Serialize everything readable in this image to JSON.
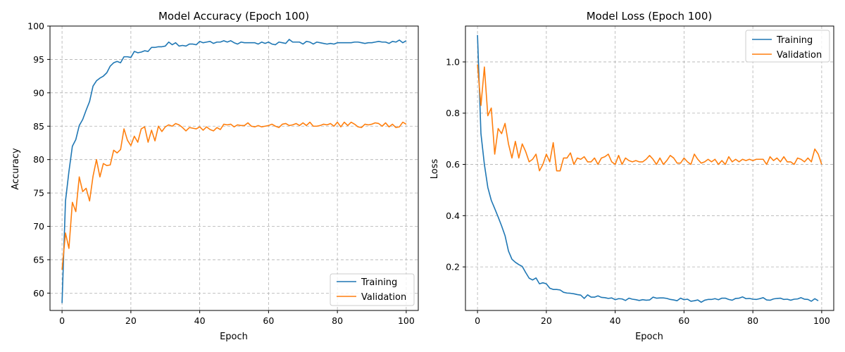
{
  "colors": {
    "training": "#1f77b4",
    "validation": "#ff7f0e",
    "grid": "#b0b0b0",
    "axis": "#000000"
  },
  "chart_data": [
    {
      "type": "line",
      "title": "Model Accuracy (Epoch 100)",
      "xlabel": "Epoch",
      "ylabel": "Accuracy",
      "xlim": [
        -3.5,
        103.5
      ],
      "ylim": [
        57.4,
        100
      ],
      "xticks": [
        0,
        20,
        40,
        60,
        80,
        100
      ],
      "yticks": [
        60,
        65,
        70,
        75,
        80,
        85,
        90,
        95,
        100
      ],
      "grid": true,
      "legend_position": "lower right",
      "series": [
        {
          "name": "Training",
          "color": "#1f77b4",
          "values": [
            58.5,
            73.8,
            78.2,
            82.0,
            83.0,
            85.1,
            86.0,
            87.4,
            88.7,
            91.0,
            91.8,
            92.2,
            92.5,
            93.0,
            94.0,
            94.5,
            94.7,
            94.5,
            95.4,
            95.4,
            95.3,
            96.2,
            96.0,
            96.1,
            96.3,
            96.2,
            96.8,
            96.8,
            96.9,
            96.9,
            97.0,
            97.6,
            97.2,
            97.5,
            97.0,
            97.1,
            97.0,
            97.3,
            97.3,
            97.2,
            97.7,
            97.5,
            97.6,
            97.7,
            97.4,
            97.6,
            97.6,
            97.8,
            97.6,
            97.8,
            97.5,
            97.3,
            97.6,
            97.5,
            97.5,
            97.5,
            97.5,
            97.3,
            97.6,
            97.4,
            97.6,
            97.3,
            97.2,
            97.6,
            97.5,
            97.4,
            98.0,
            97.6,
            97.6,
            97.6,
            97.3,
            97.7,
            97.6,
            97.3,
            97.6,
            97.5,
            97.4,
            97.3,
            97.4,
            97.3,
            97.5,
            97.5,
            97.5,
            97.5,
            97.5,
            97.6,
            97.6,
            97.5,
            97.4,
            97.5,
            97.5,
            97.6,
            97.7,
            97.6,
            97.6,
            97.4,
            97.7,
            97.6,
            97.9,
            97.5,
            97.8
          ]
        },
        {
          "name": "Validation",
          "color": "#ff7f0e",
          "values": [
            63.5,
            69.0,
            66.7,
            73.6,
            72.2,
            77.4,
            75.2,
            75.7,
            73.8,
            77.5,
            80.0,
            77.4,
            79.4,
            79.1,
            79.2,
            81.4,
            81.0,
            81.5,
            84.6,
            82.9,
            82.1,
            83.5,
            82.6,
            84.6,
            84.9,
            82.6,
            84.4,
            82.8,
            85.0,
            84.2,
            84.9,
            85.2,
            85.0,
            85.4,
            85.2,
            84.8,
            84.3,
            84.8,
            84.7,
            84.6,
            84.9,
            84.4,
            84.9,
            84.5,
            84.3,
            84.8,
            84.5,
            85.3,
            85.2,
            85.3,
            84.9,
            85.2,
            85.1,
            85.1,
            85.5,
            85.0,
            84.9,
            85.1,
            84.9,
            85.0,
            85.1,
            85.3,
            85.0,
            84.8,
            85.3,
            85.4,
            85.1,
            85.2,
            85.4,
            85.1,
            85.5,
            85.1,
            85.6,
            85.0,
            85.0,
            85.1,
            85.3,
            85.2,
            85.4,
            85.0,
            85.6,
            84.9,
            85.6,
            85.1,
            85.6,
            85.3,
            84.9,
            84.8,
            85.3,
            85.2,
            85.3,
            85.5,
            85.4,
            85.0,
            85.5,
            84.9,
            85.3,
            84.8,
            84.9,
            85.6,
            85.3
          ]
        }
      ]
    },
    {
      "type": "line",
      "title": "Model Loss (Epoch 100)",
      "xlabel": "Epoch",
      "ylabel": "Loss",
      "xlim": [
        -3.5,
        103.5
      ],
      "ylim": [
        0.03,
        1.14
      ],
      "xticks": [
        0,
        20,
        40,
        60,
        80,
        100
      ],
      "yticks": [
        0.2,
        0.4,
        0.6,
        0.8,
        1.0
      ],
      "grid": true,
      "legend_position": "upper right",
      "series": [
        {
          "name": "Training",
          "color": "#1f77b4",
          "values": [
            1.105,
            0.72,
            0.6,
            0.51,
            0.46,
            0.428,
            0.395,
            0.36,
            0.322,
            0.262,
            0.23,
            0.218,
            0.209,
            0.202,
            0.178,
            0.156,
            0.149,
            0.157,
            0.134,
            0.138,
            0.134,
            0.117,
            0.112,
            0.112,
            0.11,
            0.101,
            0.098,
            0.097,
            0.095,
            0.092,
            0.09,
            0.077,
            0.091,
            0.082,
            0.082,
            0.087,
            0.081,
            0.08,
            0.077,
            0.079,
            0.072,
            0.076,
            0.075,
            0.069,
            0.078,
            0.074,
            0.072,
            0.069,
            0.072,
            0.07,
            0.071,
            0.082,
            0.078,
            0.079,
            0.079,
            0.077,
            0.073,
            0.071,
            0.068,
            0.078,
            0.072,
            0.074,
            0.066,
            0.068,
            0.071,
            0.062,
            0.07,
            0.073,
            0.073,
            0.076,
            0.072,
            0.078,
            0.078,
            0.073,
            0.07,
            0.077,
            0.078,
            0.083,
            0.076,
            0.077,
            0.074,
            0.073,
            0.076,
            0.08,
            0.071,
            0.07,
            0.075,
            0.077,
            0.078,
            0.073,
            0.074,
            0.07,
            0.074,
            0.075,
            0.08,
            0.074,
            0.073,
            0.066,
            0.076,
            0.068
          ]
        },
        {
          "name": "Validation",
          "color": "#ff7f0e",
          "values": [
            0.99,
            0.83,
            0.98,
            0.79,
            0.82,
            0.64,
            0.74,
            0.72,
            0.76,
            0.68,
            0.625,
            0.69,
            0.625,
            0.68,
            0.65,
            0.61,
            0.62,
            0.64,
            0.575,
            0.6,
            0.64,
            0.61,
            0.685,
            0.575,
            0.575,
            0.625,
            0.625,
            0.645,
            0.6,
            0.625,
            0.62,
            0.63,
            0.61,
            0.61,
            0.625,
            0.6,
            0.625,
            0.63,
            0.64,
            0.61,
            0.6,
            0.635,
            0.6,
            0.625,
            0.615,
            0.61,
            0.615,
            0.61,
            0.61,
            0.62,
            0.635,
            0.62,
            0.6,
            0.625,
            0.6,
            0.615,
            0.635,
            0.625,
            0.605,
            0.605,
            0.625,
            0.61,
            0.6,
            0.64,
            0.62,
            0.605,
            0.61,
            0.62,
            0.61,
            0.62,
            0.6,
            0.615,
            0.6,
            0.63,
            0.61,
            0.62,
            0.61,
            0.62,
            0.615,
            0.62,
            0.615,
            0.62,
            0.62,
            0.62,
            0.6,
            0.63,
            0.615,
            0.625,
            0.61,
            0.63,
            0.61,
            0.61,
            0.6,
            0.625,
            0.62,
            0.61,
            0.625,
            0.61,
            0.66,
            0.64,
            0.6
          ]
        }
      ]
    }
  ]
}
